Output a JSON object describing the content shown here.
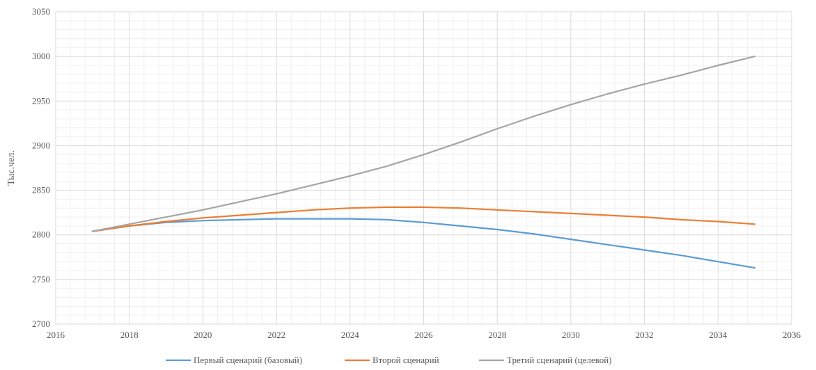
{
  "chart_data": {
    "type": "line",
    "title": "",
    "xlabel": "",
    "ylabel": "Тыс.чел.",
    "xlim": [
      2016,
      2036
    ],
    "ylim": [
      2700,
      3050
    ],
    "xticks": [
      2016,
      2018,
      2020,
      2022,
      2024,
      2026,
      2028,
      2030,
      2032,
      2034,
      2036
    ],
    "yticks": [
      2700,
      2750,
      2800,
      2850,
      2900,
      2950,
      3000,
      3050
    ],
    "grid": true,
    "legend_position": "bottom",
    "x": [
      2017,
      2018,
      2019,
      2020,
      2021,
      2022,
      2023,
      2024,
      2025,
      2026,
      2027,
      2028,
      2029,
      2030,
      2031,
      2032,
      2033,
      2034,
      2035
    ],
    "series": [
      {
        "name": "Первый сценарий (базовый)",
        "color": "#5B9BD5",
        "values": [
          2804,
          2810,
          2814,
          2816,
          2817,
          2818,
          2818,
          2818,
          2817,
          2814,
          2810,
          2806,
          2801,
          2795,
          2789,
          2783,
          2777,
          2770,
          2763
        ]
      },
      {
        "name": "Второй сценарий",
        "color": "#ED7D31",
        "values": [
          2804,
          2810,
          2815,
          2819,
          2822,
          2825,
          2828,
          2830,
          2831,
          2831,
          2830,
          2828,
          2826,
          2824,
          2822,
          2820,
          2817,
          2815,
          2812
        ]
      },
      {
        "name": "Третий сценарий (целевой)",
        "color": "#A5A5A5",
        "values": [
          2804,
          2812,
          2820,
          2828,
          2837,
          2846,
          2856,
          2866,
          2877,
          2890,
          2904,
          2919,
          2933,
          2946,
          2958,
          2969,
          2979,
          2990,
          3000
        ]
      }
    ]
  }
}
